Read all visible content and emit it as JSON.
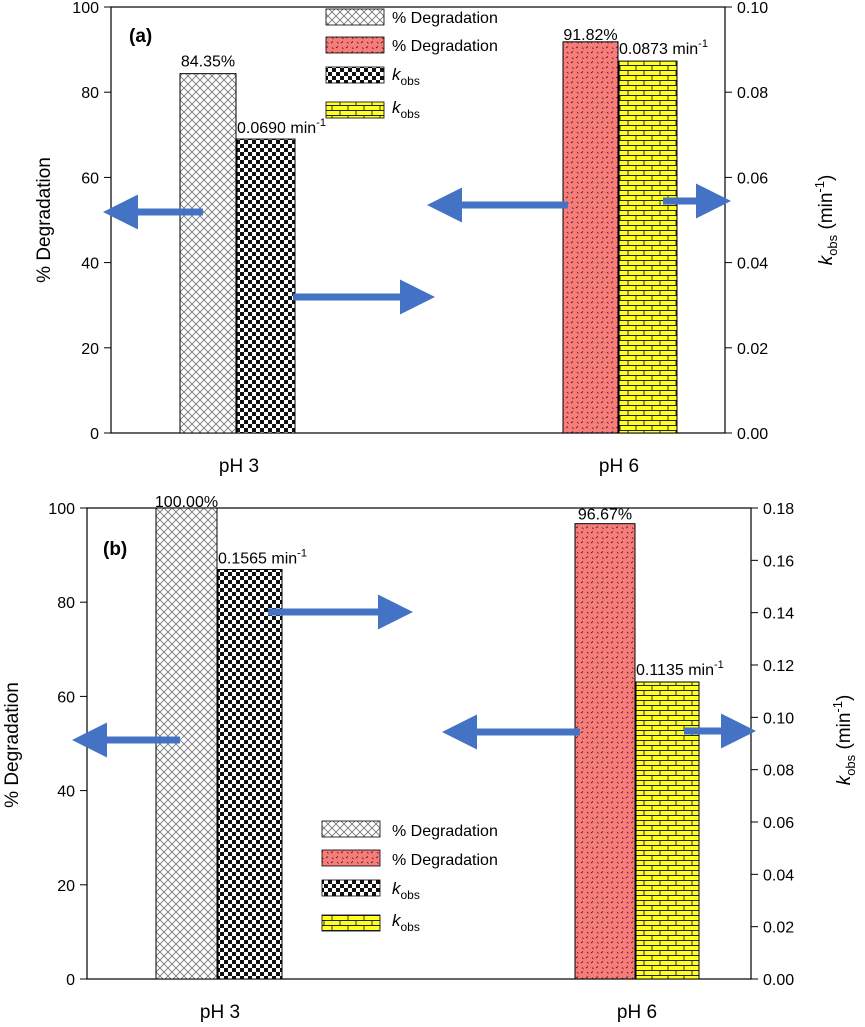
{
  "colors": {
    "red": "#f87d7a",
    "yellow": "#ffff22",
    "arrow": "#4472c4",
    "axis": "#000000"
  },
  "chart_data": [
    {
      "type": "bar",
      "panel_label": "(a)",
      "categories": [
        "pH 3",
        "pH 6"
      ],
      "ylabel": "% Degradation",
      "y2label_main": "k",
      "y2label_sub": "obs",
      "y2label_unit_open": "(min",
      "y2label_unit_exp": "-1",
      "y2label_unit_close": ")",
      "ylim": [
        0,
        100
      ],
      "yticks": [
        "0",
        "20",
        "40",
        "60",
        "80",
        "100"
      ],
      "y2lim": [
        0,
        0.1
      ],
      "y2ticks": [
        "0.00",
        "0.02",
        "0.04",
        "0.06",
        "0.08",
        "0.10"
      ],
      "series": [
        {
          "name": "% Degradation",
          "axis": "left",
          "pattern": "crosshatch",
          "category": "pH 3",
          "value": 84.35,
          "label": "84.35%"
        },
        {
          "name": "kobs",
          "axis": "right",
          "pattern": "checker",
          "category": "pH 3",
          "value": 0.069,
          "label_main": "0.0690 min",
          "label_exp": "-1"
        },
        {
          "name": "% Degradation",
          "axis": "left",
          "pattern": "red",
          "category": "pH 6",
          "value": 91.82,
          "label": "91.82%"
        },
        {
          "name": "kobs",
          "axis": "right",
          "pattern": "brick",
          "category": "pH 6",
          "value": 0.0873,
          "label_main": "0.0873 min",
          "label_exp": "-1"
        }
      ],
      "legend": {
        "placement": "top-center",
        "entries": [
          {
            "pattern": "crosshatch",
            "text": "% Degradation"
          },
          {
            "pattern": "red",
            "text": "% Degradation"
          },
          {
            "pattern": "checker",
            "text_main": "k",
            "text_sub": "obs"
          },
          {
            "pattern": "brick",
            "text_main": "k",
            "text_sub": "obs"
          }
        ]
      }
    },
    {
      "type": "bar",
      "panel_label": "(b)",
      "categories": [
        "pH 3",
        "pH 6"
      ],
      "ylabel": "% Degradation",
      "y2label_main": "k",
      "y2label_sub": "obs",
      "y2label_unit_open": "(min",
      "y2label_unit_exp": "-1",
      "y2label_unit_close": ")",
      "ylim": [
        0,
        100
      ],
      "yticks": [
        "0",
        "20",
        "40",
        "60",
        "80",
        "100"
      ],
      "y2lim": [
        0,
        0.18
      ],
      "y2ticks": [
        "0.00",
        "0.02",
        "0.04",
        "0.06",
        "0.08",
        "0.10",
        "0.12",
        "0.14",
        "0.16",
        "0.18"
      ],
      "series": [
        {
          "name": "% Degradation",
          "axis": "left",
          "pattern": "crosshatch",
          "category": "pH 3",
          "value": 100.0,
          "label": "100.00%"
        },
        {
          "name": "kobs",
          "axis": "right",
          "pattern": "checker",
          "category": "pH 3",
          "value": 0.1565,
          "label_main": "0.1565 min",
          "label_exp": "-1"
        },
        {
          "name": "% Degradation",
          "axis": "left",
          "pattern": "red",
          "category": "pH 6",
          "value": 96.67,
          "label": "96.67%"
        },
        {
          "name": "kobs",
          "axis": "right",
          "pattern": "brick",
          "category": "pH 6",
          "value": 0.1135,
          "label_main": "0.1135 min",
          "label_exp": "-1"
        }
      ],
      "legend": {
        "placement": "bottom-center",
        "entries": [
          {
            "pattern": "crosshatch",
            "text": "% Degradation"
          },
          {
            "pattern": "red",
            "text": "% Degradation"
          },
          {
            "pattern": "checker",
            "text_main": "k",
            "text_sub": "obs"
          },
          {
            "pattern": "brick",
            "text_main": "k",
            "text_sub": "obs"
          }
        ]
      }
    }
  ]
}
